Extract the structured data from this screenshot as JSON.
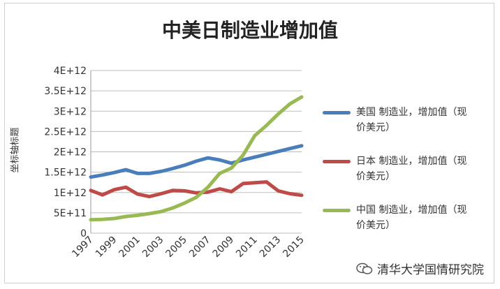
{
  "chart_data": {
    "type": "line",
    "title": "中美日制造业增加值",
    "ylabel": "坐标轴标题",
    "xlabel": "",
    "x": [
      1997,
      1998,
      1999,
      2000,
      2001,
      2002,
      2003,
      2004,
      2005,
      2006,
      2007,
      2008,
      2009,
      2010,
      2011,
      2012,
      2013,
      2014,
      2015
    ],
    "x_tick_labels": [
      "1997",
      "1999",
      "2001",
      "2003",
      "2005",
      "2007",
      "2009",
      "2011",
      "2013",
      "2015"
    ],
    "y_tick_labels": [
      "0",
      "5E+11",
      "1E+12",
      "1.5E+12",
      "2E+12",
      "2.5E+12",
      "3E+12",
      "3.5E+12",
      "4E+12"
    ],
    "ylim": [
      0,
      4000000000000
    ],
    "grid": true,
    "legend_position": "right",
    "series": [
      {
        "name": "美国 制造业，增加值（现价美元）",
        "color": "#4a7ebb",
        "values": [
          1380000000000.0,
          1430000000000.0,
          1490000000000.0,
          1560000000000.0,
          1470000000000.0,
          1470000000000.0,
          1520000000000.0,
          1590000000000.0,
          1670000000000.0,
          1770000000000.0,
          1850000000000.0,
          1800000000000.0,
          1720000000000.0,
          1800000000000.0,
          1870000000000.0,
          1940000000000.0,
          2010000000000.0,
          2080000000000.0,
          2150000000000.0
        ]
      },
      {
        "name": "日本 制造业，增加值（现价美元）",
        "color": "#be4b48",
        "values": [
          1050000000000.0,
          940000000000.0,
          1070000000000.0,
          1130000000000.0,
          960000000000.0,
          900000000000.0,
          970000000000.0,
          1050000000000.0,
          1040000000000.0,
          990000000000.0,
          1010000000000.0,
          1090000000000.0,
          1020000000000.0,
          1220000000000.0,
          1240000000000.0,
          1260000000000.0,
          1040000000000.0,
          970000000000.0,
          930000000000.0
        ]
      },
      {
        "name": "中国 制造业，增加值（现价美元）",
        "color": "#98b954",
        "values": [
          330000000000.0,
          340000000000.0,
          360000000000.0,
          410000000000.0,
          440000000000.0,
          480000000000.0,
          530000000000.0,
          620000000000.0,
          740000000000.0,
          880000000000.0,
          1130000000000.0,
          1470000000000.0,
          1600000000000.0,
          1920000000000.0,
          2400000000000.0,
          2650000000000.0,
          2930000000000.0,
          3180000000000.0,
          3350000000000.0
        ]
      }
    ]
  },
  "legend_lines": [
    [
      "美国 制造业，增加值（现",
      "价美元）"
    ],
    [
      "日本 制造业，增加值（现",
      "价美元）"
    ],
    [
      "中国 制造业，增加值（现",
      "价美元）"
    ]
  ],
  "watermark": {
    "text": "清华大学国情研究院",
    "icon": "wechat-icon"
  }
}
